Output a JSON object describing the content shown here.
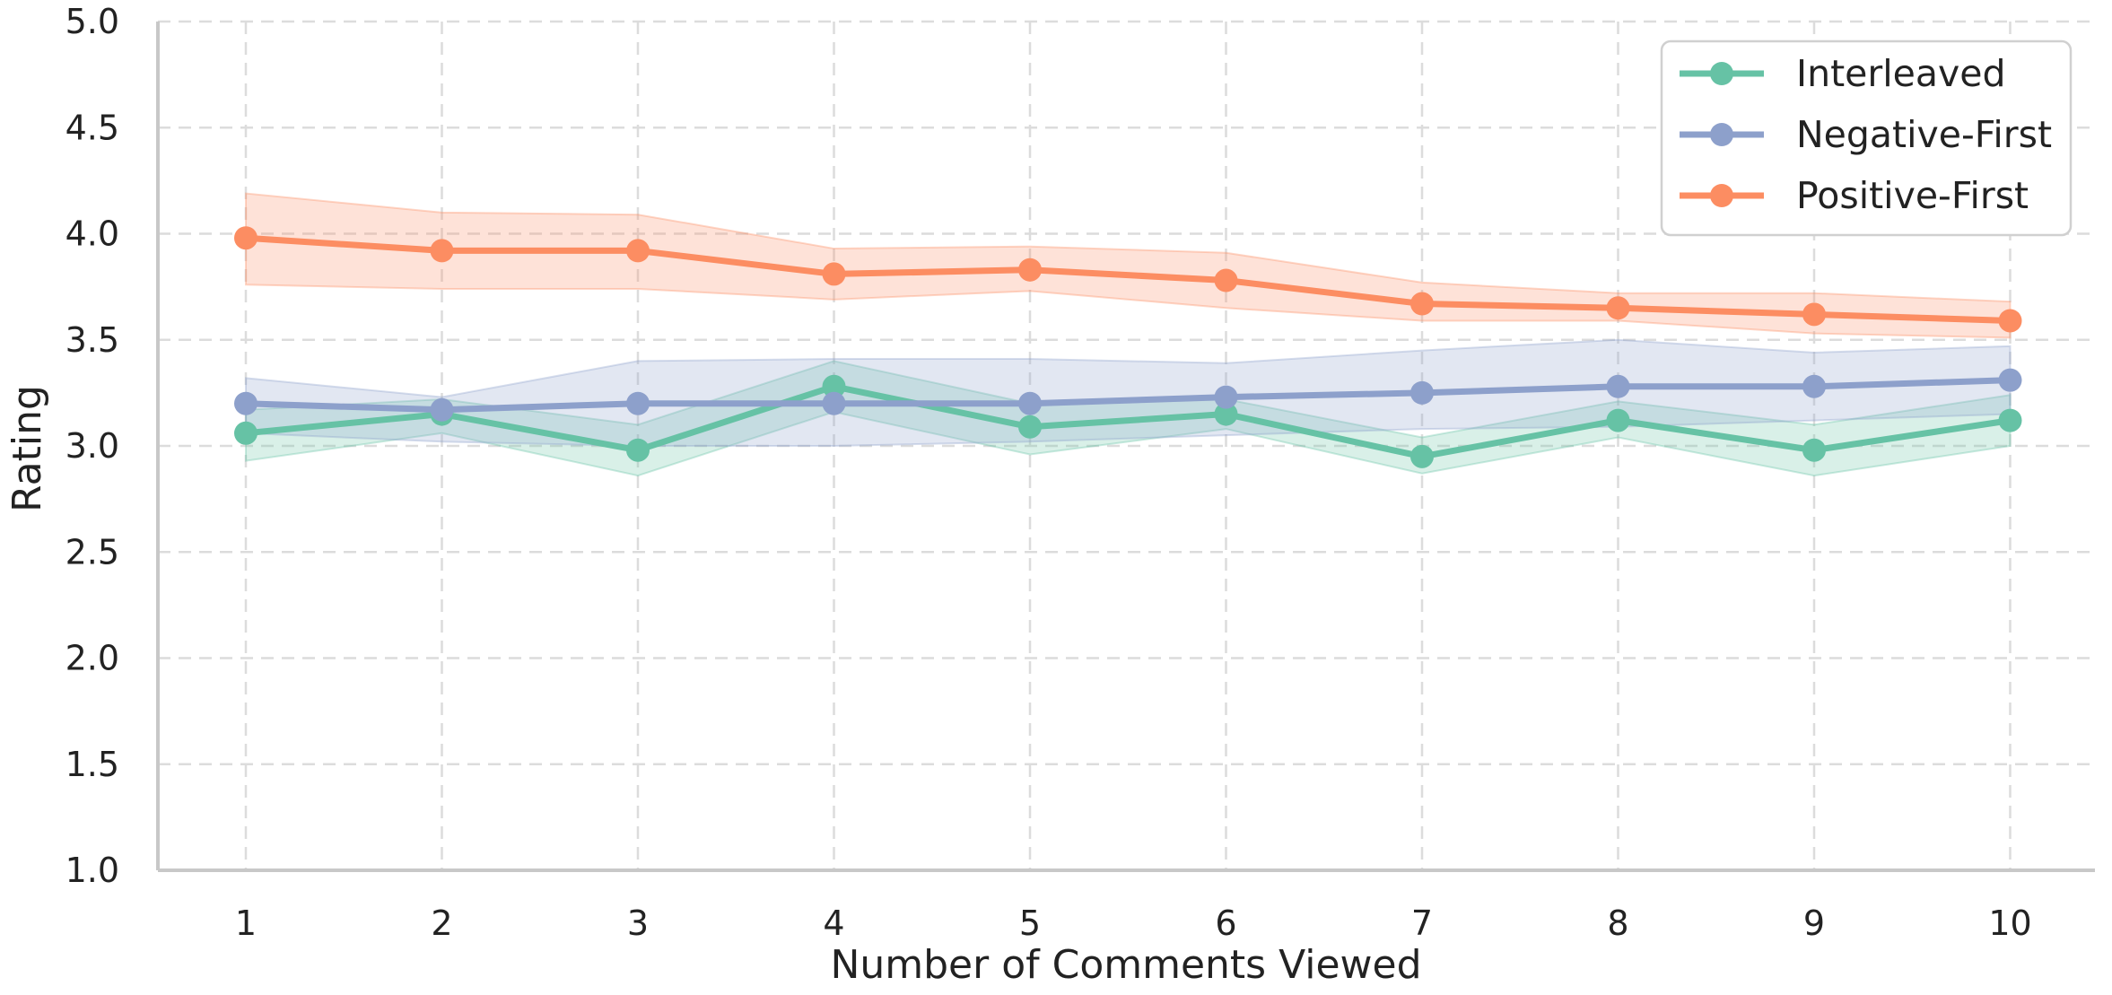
{
  "chart_data": {
    "type": "line",
    "xlabel": "Number of Comments Viewed",
    "ylabel": "Rating",
    "x": [
      1,
      2,
      3,
      4,
      5,
      6,
      7,
      8,
      9,
      10
    ],
    "x_tick_labels": [
      "1",
      "2",
      "3",
      "4",
      "5",
      "6",
      "7",
      "8",
      "9",
      "10"
    ],
    "ylim": [
      1.0,
      5.0
    ],
    "y_ticks": [
      1.0,
      1.5,
      2.0,
      2.5,
      3.0,
      3.5,
      4.0,
      4.5,
      5.0
    ],
    "y_tick_labels": [
      "1.0",
      "1.5",
      "2.0",
      "2.5",
      "3.0",
      "3.5",
      "4.0",
      "4.5",
      "5.0"
    ],
    "grid": true,
    "legend_position": "top-right",
    "series": [
      {
        "name": "Interleaved",
        "color": "#66c2a5",
        "values": [
          3.06,
          3.15,
          2.98,
          3.28,
          3.09,
          3.15,
          2.95,
          3.12,
          2.98,
          3.12
        ],
        "ci_lower": [
          2.93,
          3.06,
          2.86,
          3.16,
          2.96,
          3.08,
          2.87,
          3.04,
          2.86,
          3.0
        ],
        "ci_upper": [
          3.17,
          3.22,
          3.1,
          3.4,
          3.2,
          3.22,
          3.04,
          3.21,
          3.1,
          3.24
        ]
      },
      {
        "name": "Negative-First",
        "color": "#8da0cb",
        "values": [
          3.2,
          3.17,
          3.2,
          3.2,
          3.2,
          3.23,
          3.25,
          3.28,
          3.28,
          3.31
        ],
        "ci_lower": [
          3.06,
          3.02,
          3.0,
          3.0,
          3.02,
          3.05,
          3.08,
          3.09,
          3.12,
          3.15
        ],
        "ci_upper": [
          3.32,
          3.23,
          3.4,
          3.41,
          3.41,
          3.39,
          3.45,
          3.5,
          3.44,
          3.47
        ]
      },
      {
        "name": "Positive-First",
        "color": "#fc8d62",
        "values": [
          3.98,
          3.92,
          3.92,
          3.81,
          3.83,
          3.78,
          3.67,
          3.65,
          3.62,
          3.59
        ],
        "ci_lower": [
          3.76,
          3.74,
          3.74,
          3.69,
          3.73,
          3.65,
          3.59,
          3.59,
          3.53,
          3.51
        ],
        "ci_upper": [
          4.19,
          4.1,
          4.09,
          3.93,
          3.94,
          3.91,
          3.77,
          3.72,
          3.72,
          3.68
        ]
      }
    ]
  }
}
